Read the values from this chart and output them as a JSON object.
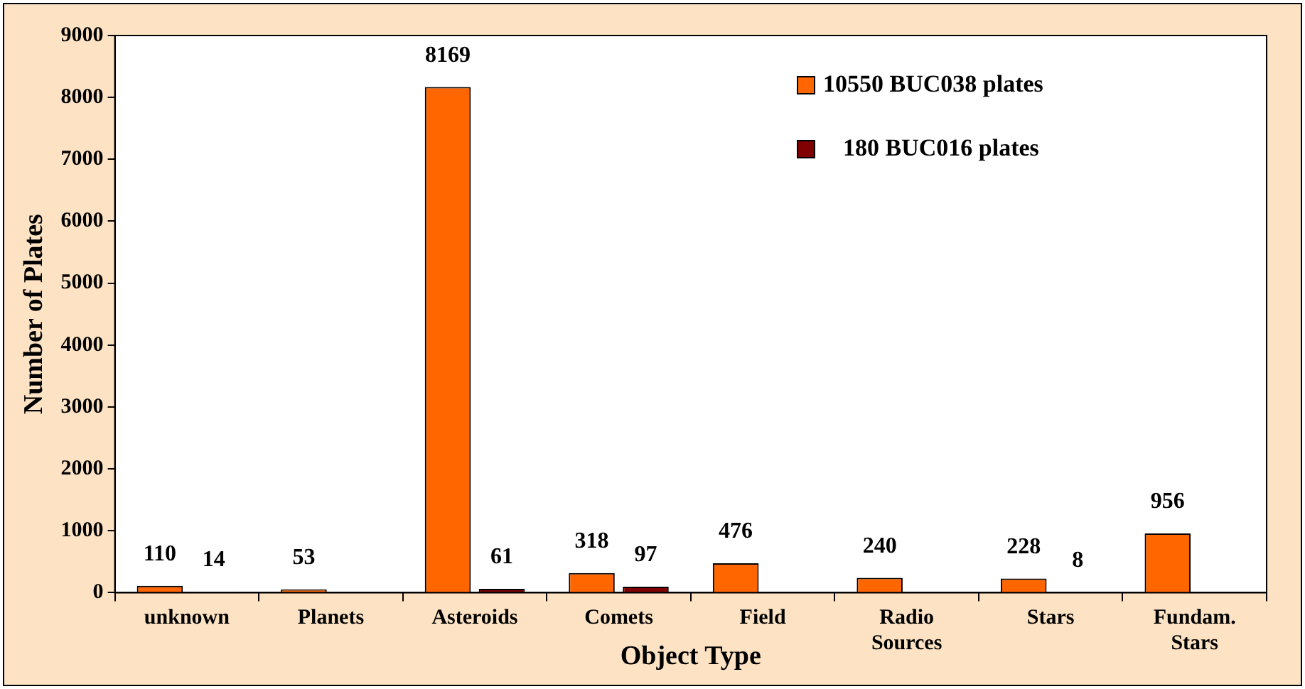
{
  "chart_data": {
    "type": "bar",
    "xlabel": "Object Type",
    "ylabel": "Number of Plates",
    "categories": [
      "unknown",
      "Planets",
      "Asteroids",
      "Comets",
      "Field",
      "Radio Sources",
      "Stars",
      "Fundam. Stars"
    ],
    "series": [
      {
        "name": "10550 BUC038 plates",
        "color": "#ff6600",
        "values": [
          110,
          53,
          8169,
          318,
          476,
          240,
          228,
          956
        ]
      },
      {
        "name": "180 BUC016 plates",
        "color": "#800000",
        "values": [
          14,
          null,
          61,
          97,
          null,
          null,
          8,
          null
        ]
      }
    ],
    "ylim": [
      0,
      9000
    ],
    "yticks": [
      0,
      1000,
      2000,
      3000,
      4000,
      5000,
      6000,
      7000,
      8000,
      9000
    ],
    "grid": false,
    "legend": "top right",
    "data_labels": true
  }
}
